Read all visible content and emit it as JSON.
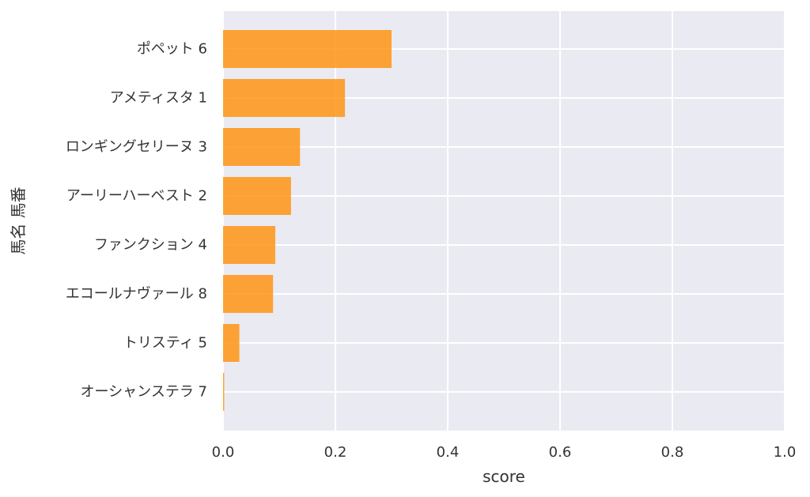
{
  "chart_data": {
    "type": "bar",
    "orientation": "horizontal",
    "categories": [
      "ポペット 6",
      "アメティスタ 1",
      "ロンギングセリーヌ 3",
      "アーリーハーベスト 2",
      "ファンクション 4",
      "エコールナヴァール 8",
      "トリスティ 5",
      "オーシャンステラ 7"
    ],
    "values": [
      0.3,
      0.217,
      0.137,
      0.121,
      0.093,
      0.089,
      0.029,
      0.002
    ],
    "xlabel": "score",
    "ylabel": "馬名 馬番",
    "xlim": [
      0.0,
      1.0
    ],
    "xticks": [
      "0.0",
      "0.2",
      "0.4",
      "0.6",
      "0.8",
      "1.0"
    ],
    "grid": true,
    "colors": {
      "bar": "#ff9414",
      "plot_background": "#eaeaf2",
      "grid": "#ffffff"
    }
  }
}
